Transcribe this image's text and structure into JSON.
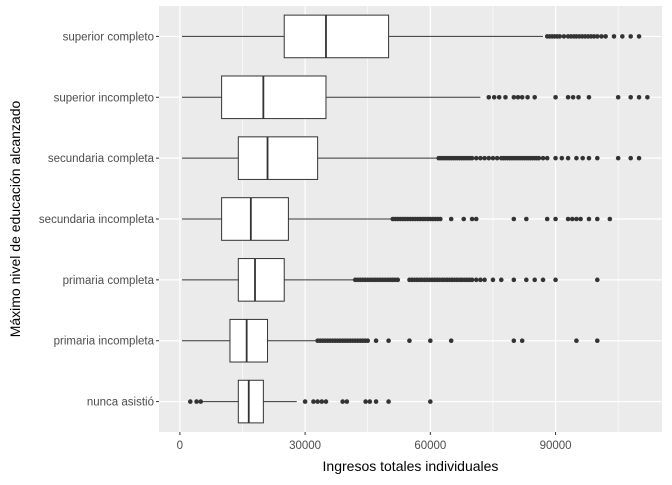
{
  "chart_data": {
    "type": "boxplot",
    "orientation": "horizontal",
    "title": "",
    "xlabel": "Ingresos totales individuales",
    "ylabel": "Máximo nivel de educación alcanzado",
    "xlim": [
      -5000,
      115500
    ],
    "x_ticks": [
      0,
      30000,
      60000,
      90000
    ],
    "x_tick_labels": [
      "0",
      "30000",
      "60000",
      "90000"
    ],
    "grid": true,
    "theme": {
      "panel_bg": "#ebebeb",
      "grid_major": "#ffffff",
      "box_fill": "#ffffff",
      "line": "#333333",
      "outlier": "#333333",
      "text": "#000000",
      "tick_text": "#4d4d4d"
    },
    "categories": [
      "superior completo",
      "superior incompleto",
      "secundaria completa",
      "secundaria incompleta",
      "primaria completa",
      "primaria incompleta",
      "nunca asistió"
    ],
    "boxes": [
      {
        "category": "superior completo",
        "whisker_low": 500,
        "q1": 25000,
        "median": 35000,
        "q3": 50000,
        "whisker_high": 87000,
        "outliers": [
          88000,
          88600,
          89200,
          89800,
          90400,
          91000,
          92000,
          93000,
          93700,
          94400,
          95000,
          95700,
          96400,
          97100,
          97800,
          98500,
          99200,
          100000,
          101000,
          102000,
          104000,
          106000,
          108000,
          110000
        ]
      },
      {
        "category": "superior incompleto",
        "whisker_low": 500,
        "q1": 10000,
        "median": 20000,
        "q3": 35000,
        "whisker_high": 72000,
        "outliers": [
          74000,
          75300,
          76500,
          78000,
          80000,
          81000,
          82000,
          83300,
          85000,
          90000,
          93000,
          94200,
          95500,
          98000,
          105000,
          108000,
          110000,
          112000
        ]
      },
      {
        "category": "secundaria completa",
        "whisker_low": 500,
        "q1": 14000,
        "median": 21000,
        "q3": 33000,
        "whisker_high": 62000,
        "outliers": [
          62000,
          62500,
          63000,
          63500,
          64000,
          64500,
          65000,
          65500,
          66000,
          66500,
          67000,
          67500,
          68000,
          68500,
          69000,
          69500,
          70000,
          71000,
          72000,
          73000,
          74000,
          75000,
          76000,
          77000,
          77500,
          78000,
          78500,
          79000,
          79500,
          80000,
          80500,
          81000,
          81500,
          82000,
          82500,
          83000,
          83500,
          84000,
          84500,
          85000,
          85500,
          86000,
          87000,
          88000,
          90000,
          91500,
          93000,
          95000,
          96500,
          98000,
          100000,
          105000,
          108000,
          110000
        ]
      },
      {
        "category": "secundaria incompleta",
        "whisker_low": 500,
        "q1": 10000,
        "median": 17000,
        "q3": 26000,
        "whisker_high": 51000,
        "outliers": [
          51000,
          51600,
          52200,
          52800,
          53400,
          54000,
          54600,
          55200,
          55800,
          56400,
          57000,
          57600,
          58200,
          58800,
          59400,
          60000,
          60600,
          61200,
          61800,
          62400,
          65000,
          68000,
          70000,
          71000,
          80000,
          83000,
          88000,
          90000,
          93000,
          94000,
          95000,
          96000,
          98000,
          100000,
          103000
        ]
      },
      {
        "category": "primaria completa",
        "whisker_low": 500,
        "q1": 14000,
        "median": 18000,
        "q3": 25000,
        "whisker_high": 42000,
        "outliers": [
          42000,
          42600,
          43200,
          43800,
          44400,
          45000,
          45600,
          46200,
          46800,
          47400,
          48000,
          48600,
          49200,
          49800,
          50400,
          51000,
          51600,
          52200,
          55000,
          55600,
          56200,
          56800,
          57400,
          58000,
          58600,
          59200,
          59800,
          60400,
          61000,
          61600,
          62200,
          62800,
          63400,
          64000,
          64600,
          65200,
          65800,
          66400,
          67000,
          67600,
          68200,
          68800,
          69400,
          70000,
          71000,
          72000,
          73000,
          75000,
          77000,
          80000,
          83000,
          85000,
          87000,
          90000,
          100000
        ]
      },
      {
        "category": "primaria incompleta",
        "whisker_low": 500,
        "q1": 12000,
        "median": 16000,
        "q3": 21000,
        "whisker_high": 33000,
        "outliers": [
          33000,
          33600,
          34200,
          34800,
          35400,
          36000,
          36600,
          37200,
          37800,
          38400,
          39000,
          39600,
          40200,
          40800,
          41400,
          42000,
          42600,
          43200,
          43800,
          44400,
          45000,
          47000,
          50000,
          55000,
          60000,
          65000,
          80000,
          82000,
          95000,
          100000
        ]
      },
      {
        "category": "nunca asistió",
        "whisker_low": 5500,
        "q1": 14000,
        "median": 16500,
        "q3": 20000,
        "whisker_high": 28000,
        "outliers": [
          2500,
          4000,
          5000,
          30000,
          32000,
          33000,
          34000,
          35000,
          39000,
          40000,
          44500,
          45500,
          47000,
          50000,
          60000
        ]
      }
    ]
  }
}
